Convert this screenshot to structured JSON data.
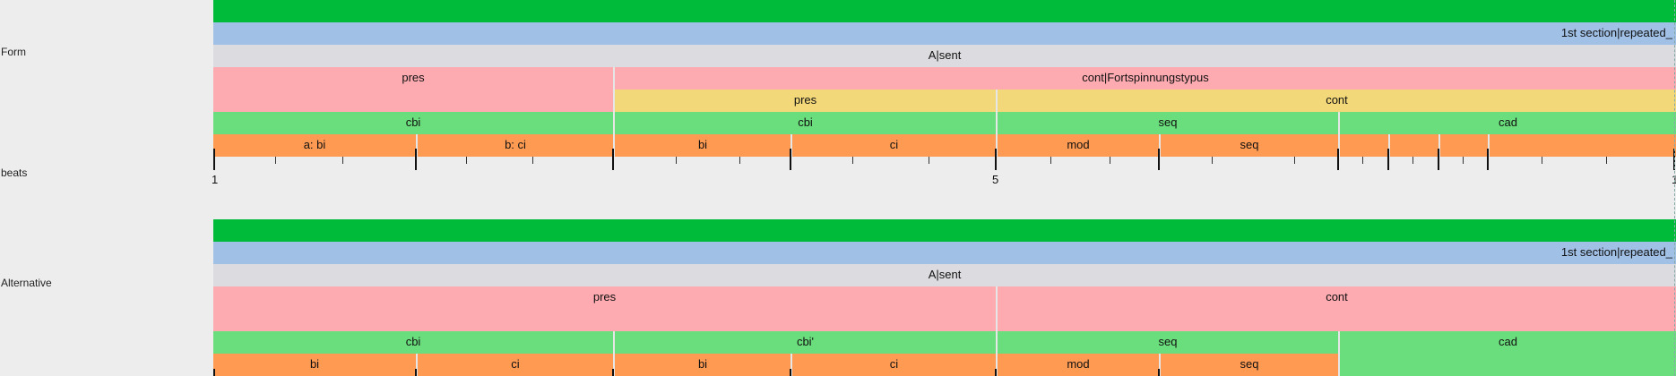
{
  "labels": {
    "form": "Form",
    "beats": "beats",
    "alternative": "Alternative"
  },
  "colors": {
    "green": "#00bb3a",
    "blue": "#a0c0e6",
    "gray": "#dcdce0",
    "pink": "#fdaab0",
    "yellow": "#f3d87a",
    "light_green": "#6ade7c",
    "orange": "#fe9a52",
    "background": "#ededed"
  },
  "form": {
    "top_bar_label": "",
    "section_label": "1st section|repeated_",
    "a_sent_label": "A|sent",
    "pres_label": "pres",
    "cont_label": "cont|Fortspinnungstypus",
    "inner_pres_label": "pres",
    "inner_cont_label": "cont",
    "phrase_labels": [
      "cbi",
      "cbi",
      "seq",
      "cad"
    ],
    "idea_labels": [
      "a: bi",
      "b: ci",
      "bi",
      "ci",
      "mod",
      "seq",
      "",
      "",
      "",
      ""
    ]
  },
  "beats": {
    "numbers": [
      "1",
      "5",
      "1"
    ]
  },
  "alternative": {
    "top_bar_label": "",
    "section_label": "1st section|repeated_",
    "a_sent_label": "A|sent",
    "pres_label": "pres",
    "cont_label": "cont",
    "phrase_labels": [
      "cbi",
      "cbi'",
      "seq",
      "cad"
    ],
    "idea_labels": [
      "bi",
      "ci",
      "bi",
      "ci",
      "mod",
      "seq"
    ]
  }
}
